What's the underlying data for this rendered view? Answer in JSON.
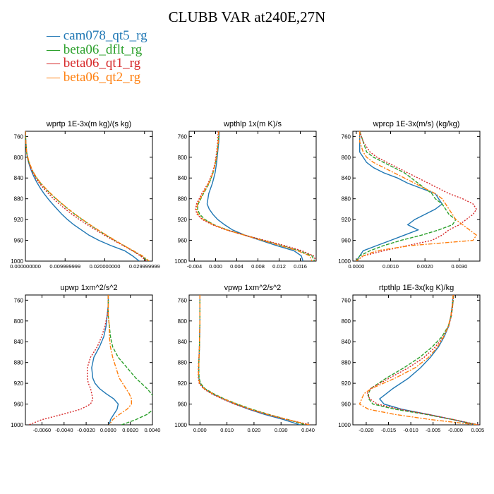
{
  "title": "CLUBB VAR at240E,27N",
  "legend": [
    {
      "name": "cam078_qt5_rg",
      "color": "#1f77b4"
    },
    {
      "name": "beta06_dflt_rg",
      "color": "#2ca02c"
    },
    {
      "name": "beta06_qt1_rg",
      "color": "#d62728"
    },
    {
      "name": "beta06_qt2_rg",
      "color": "#ff7f0e"
    }
  ],
  "chart_data": [
    {
      "type": "line",
      "title": "wprtp 1E-3x(m kg)/(s kg)",
      "ylim": [
        1000,
        750
      ],
      "yticks": [
        760,
        800,
        840,
        880,
        920,
        960,
        1000
      ],
      "xlim": [
        0,
        0.032
      ],
      "xticks": [
        0,
        0.01,
        0.02,
        0.03
      ],
      "xticklabels": [
        "0.000000000",
        "0.009999999",
        "0.020000000",
        "0.029999999"
      ],
      "y": [
        750,
        770,
        790,
        800,
        810,
        820,
        830,
        840,
        850,
        860,
        870,
        880,
        890,
        900,
        910,
        920,
        930,
        940,
        950,
        960,
        970,
        980,
        990,
        1000
      ],
      "series": [
        {
          "name": "cam078_qt5_rg",
          "values": [
            0,
            0.0001,
            0.0003,
            0.0005,
            0.0008,
            0.0012,
            0.0017,
            0.0023,
            0.003,
            0.0038,
            0.0047,
            0.0057,
            0.0068,
            0.008,
            0.0092,
            0.0106,
            0.0122,
            0.0141,
            0.016,
            0.0185,
            0.0215,
            0.025,
            0.027,
            0.0287
          ]
        },
        {
          "name": "beta06_dflt_rg",
          "values": [
            0,
            0.0001,
            0.0003,
            0.0005,
            0.0009,
            0.0014,
            0.002,
            0.0028,
            0.0038,
            0.005,
            0.0063,
            0.0077,
            0.0092,
            0.0108,
            0.0125,
            0.0143,
            0.0162,
            0.0182,
            0.0203,
            0.0225,
            0.0248,
            0.027,
            0.0292,
            0.031
          ]
        },
        {
          "name": "beta06_qt1_rg",
          "values": [
            0,
            0.0001,
            0.0003,
            0.0005,
            0.0009,
            0.0013,
            0.0019,
            0.0026,
            0.0035,
            0.0046,
            0.0058,
            0.0071,
            0.0085,
            0.0101,
            0.0118,
            0.0136,
            0.0156,
            0.0177,
            0.0199,
            0.0222,
            0.0246,
            0.027,
            0.029,
            0.0305
          ]
        },
        {
          "name": "beta06_qt2_rg",
          "values": [
            0,
            0.0001,
            0.0003,
            0.0006,
            0.001,
            0.0015,
            0.0021,
            0.0029,
            0.0039,
            0.0051,
            0.0064,
            0.0078,
            0.0093,
            0.0109,
            0.0126,
            0.0144,
            0.0163,
            0.0183,
            0.0204,
            0.0226,
            0.0248,
            0.0272,
            0.0295,
            0.0312
          ]
        }
      ]
    },
    {
      "type": "line",
      "title": "wpthlp 1x(m K)/s",
      "ylim": [
        1000,
        750
      ],
      "yticks": [
        760,
        800,
        840,
        880,
        920,
        960,
        1000
      ],
      "xlim": [
        -0.005,
        0.019
      ],
      "xticks": [
        -0.004,
        0,
        0.004,
        0.008,
        0.012,
        0.016
      ],
      "xticklabels": [
        "-0.004",
        "0.000",
        "0.004",
        "0.008",
        "0.012",
        "0.016"
      ],
      "y": [
        750,
        770,
        790,
        810,
        830,
        850,
        870,
        890,
        900,
        910,
        920,
        930,
        940,
        950,
        960,
        970,
        980,
        990,
        1000
      ],
      "series": [
        {
          "name": "cam078_qt5_rg",
          "values": [
            0.0007,
            0.0006,
            0.0004,
            0.0002,
            -0.0001,
            -0.0006,
            -0.0013,
            -0.0016,
            -0.0012,
            -0.0005,
            0.0004,
            0.0017,
            0.0032,
            0.0055,
            0.0085,
            0.0115,
            0.0148,
            0.0162,
            0.0165
          ]
        },
        {
          "name": "beta06_dflt_rg",
          "values": [
            0.0006,
            0.0005,
            0.0003,
            0.0,
            -0.0005,
            -0.0012,
            -0.0023,
            -0.0033,
            -0.0034,
            -0.003,
            -0.002,
            -0.0003,
            0.0022,
            0.0055,
            0.009,
            0.0125,
            0.0158,
            0.0182,
            0.0187
          ]
        },
        {
          "name": "beta06_qt1_rg",
          "values": [
            0.0005,
            0.0004,
            0.0002,
            -0.0001,
            -0.0006,
            -0.0014,
            -0.0026,
            -0.0036,
            -0.0038,
            -0.0035,
            -0.0025,
            -0.0006,
            0.002,
            0.0055,
            0.0093,
            0.013,
            0.0163,
            0.0185,
            0.019
          ]
        },
        {
          "name": "beta06_qt2_rg",
          "values": [
            0.0006,
            0.0005,
            0.0003,
            0.0,
            -0.0005,
            -0.0013,
            -0.0024,
            -0.0034,
            -0.0036,
            -0.0033,
            -0.0023,
            -0.0004,
            0.0021,
            0.0054,
            0.0088,
            0.0122,
            0.0155,
            0.0178,
            0.0182
          ]
        }
      ]
    },
    {
      "type": "line",
      "title": "wprcp 1E-3x(m/s) (kg/kg)",
      "ylim": [
        1000,
        750
      ],
      "yticks": [
        760,
        800,
        840,
        880,
        920,
        960,
        1000
      ],
      "xlim": [
        -0.0001,
        0.0036
      ],
      "xticks": [
        0,
        0.001,
        0.002,
        0.003
      ],
      "xticklabels": [
        "0.0000",
        "0.0010",
        "0.0020",
        "0.0030"
      ],
      "y": [
        750,
        770,
        790,
        800,
        810,
        820,
        830,
        840,
        850,
        860,
        870,
        880,
        890,
        900,
        910,
        920,
        930,
        940,
        950,
        960,
        970,
        980,
        990,
        1000
      ],
      "series": [
        {
          "name": "cam078_qt5_rg",
          "values": [
            0.0001,
            0.0001,
            0.0001,
            0.0002,
            0.0003,
            0.0005,
            0.0008,
            0.0012,
            0.0015,
            0.0019,
            0.0023,
            0.0024,
            0.0025,
            0.0023,
            0.002,
            0.0017,
            0.0015,
            0.0018,
            0.0014,
            0.001,
            0.0006,
            0.0002,
            0.0001,
            0.0
          ]
        },
        {
          "name": "beta06_dflt_rg",
          "values": [
            0.0001,
            0.0002,
            0.0003,
            0.0005,
            0.0008,
            0.0011,
            0.0014,
            0.0016,
            0.0018,
            0.002,
            0.0022,
            0.0023,
            0.0025,
            0.0026,
            0.0027,
            0.0029,
            0.0028,
            0.0024,
            0.0019,
            0.0013,
            0.0008,
            0.0004,
            0.0001,
            0.0
          ]
        },
        {
          "name": "beta06_qt1_rg",
          "values": [
            0.0001,
            0.0002,
            0.0004,
            0.0006,
            0.0009,
            0.0012,
            0.0015,
            0.0018,
            0.0021,
            0.0024,
            0.0027,
            0.0031,
            0.0034,
            0.0035,
            0.0034,
            0.0032,
            0.003,
            0.0027,
            0.0025,
            0.0022,
            0.0015,
            0.0008,
            0.0002,
            0.0
          ]
        },
        {
          "name": "beta06_qt2_rg",
          "values": [
            0.0001,
            0.0001,
            0.0002,
            0.0003,
            0.0005,
            0.0008,
            0.0011,
            0.0014,
            0.0017,
            0.002,
            0.0023,
            0.0025,
            0.0026,
            0.0027,
            0.0028,
            0.0029,
            0.0031,
            0.0033,
            0.0035,
            0.0034,
            0.0016,
            0.0006,
            0.0002,
            0.0
          ]
        }
      ]
    },
    {
      "type": "line",
      "title": "upwp 1xm^2/s^2",
      "ylim": [
        1000,
        750
      ],
      "yticks": [
        760,
        800,
        840,
        880,
        920,
        960,
        1000
      ],
      "xlim": [
        -0.0075,
        0.004
      ],
      "xticks": [
        -0.006,
        -0.004,
        -0.002,
        0,
        0.002,
        0.004
      ],
      "xticklabels": [
        "-0.0060",
        "-0.0040",
        "-0.0020",
        "0.0000",
        "0.0020",
        "0.0040"
      ],
      "y": [
        750,
        770,
        790,
        810,
        830,
        850,
        870,
        890,
        910,
        920,
        930,
        940,
        950,
        960,
        970,
        980,
        990,
        1000
      ],
      "series": [
        {
          "name": "cam078_qt5_rg",
          "values": [
            0.0,
            0.0,
            -0.0001,
            -0.0002,
            -0.0004,
            -0.0008,
            -0.0013,
            -0.0015,
            -0.0014,
            -0.0012,
            -0.0008,
            -0.0002,
            0.0005,
            0.0009,
            0.0008,
            0.0005,
            0.0002,
            0.0001
          ]
        },
        {
          "name": "beta06_dflt_rg",
          "values": [
            0.0,
            0.0,
            0.0,
            0.0001,
            0.0002,
            0.0004,
            0.0009,
            0.0017,
            0.0025,
            0.003,
            0.0035,
            0.0039,
            0.0042,
            0.0043,
            0.0041,
            0.0035,
            0.0025,
            0.0012
          ]
        },
        {
          "name": "beta06_qt1_rg",
          "values": [
            0.0,
            0.0,
            -0.0001,
            -0.0003,
            -0.0006,
            -0.001,
            -0.0016,
            -0.0019,
            -0.0019,
            -0.0018,
            -0.0016,
            -0.0015,
            -0.0014,
            -0.0016,
            -0.0025,
            -0.0042,
            -0.006,
            -0.0072
          ]
        },
        {
          "name": "beta06_qt2_rg",
          "values": [
            0.0,
            0.0,
            0.0,
            0.0001,
            0.0001,
            0.0002,
            0.0004,
            0.0007,
            0.001,
            0.0013,
            0.0016,
            0.0019,
            0.0021,
            0.0021,
            0.0017,
            0.001,
            0.0004,
            0.0001
          ]
        }
      ]
    },
    {
      "type": "line",
      "title": "vpwp 1xm^2/s^2",
      "ylim": [
        1000,
        750
      ],
      "yticks": [
        760,
        800,
        840,
        880,
        920,
        960,
        1000
      ],
      "xlim": [
        -0.004,
        0.043
      ],
      "xticks": [
        0,
        0.01,
        0.02,
        0.03,
        0.04
      ],
      "xticklabels": [
        "0.000",
        "0.010",
        "0.020",
        "0.030",
        "0.040"
      ],
      "y": [
        750,
        800,
        850,
        880,
        900,
        910,
        920,
        930,
        940,
        950,
        960,
        970,
        980,
        990,
        1000
      ],
      "series": [
        {
          "name": "cam078_qt5_rg",
          "values": [
            0.0,
            0.0,
            -0.0002,
            -0.0004,
            -0.0005,
            -0.0004,
            0.0,
            0.0015,
            0.0045,
            0.0085,
            0.013,
            0.018,
            0.024,
            0.031,
            0.037
          ]
        },
        {
          "name": "beta06_dflt_rg",
          "values": [
            0.0,
            0.0,
            -0.0002,
            -0.0004,
            -0.0004,
            -0.0003,
            0.0002,
            0.0018,
            0.005,
            0.009,
            0.0138,
            0.0192,
            0.0255,
            0.0325,
            0.039
          ]
        },
        {
          "name": "beta06_qt1_rg",
          "values": [
            0.0,
            0.0,
            -0.0002,
            -0.0005,
            -0.0006,
            -0.0006,
            -0.0003,
            0.0012,
            0.0042,
            0.0082,
            0.0128,
            0.0182,
            0.0248,
            0.0322,
            0.041
          ]
        },
        {
          "name": "beta06_qt2_rg",
          "values": [
            0.0,
            0.0,
            -0.0002,
            -0.0004,
            -0.0005,
            -0.0005,
            -0.0001,
            0.0015,
            0.0047,
            0.0088,
            0.0135,
            0.0188,
            0.0252,
            0.0325,
            0.0405
          ]
        }
      ]
    },
    {
      "type": "line",
      "title": "rtpthlp 1E-3x(kg K)/kg",
      "ylim": [
        1000,
        750
      ],
      "yticks": [
        760,
        800,
        840,
        880,
        920,
        960,
        1000
      ],
      "xlim": [
        -0.023,
        0.0055
      ],
      "xticks": [
        -0.02,
        -0.015,
        -0.01,
        -0.005,
        0,
        0.005
      ],
      "xticklabels": [
        "-0.020",
        "-0.015",
        "-0.010",
        "-0.005",
        "-0.000",
        "0.005"
      ],
      "y": [
        750,
        770,
        790,
        810,
        830,
        850,
        870,
        890,
        910,
        930,
        940,
        950,
        960,
        970,
        980,
        990,
        1000
      ],
      "series": [
        {
          "name": "cam078_qt5_rg",
          "values": [
            -0.0005,
            -0.0007,
            -0.001,
            -0.0015,
            -0.0025,
            -0.0038,
            -0.0056,
            -0.0078,
            -0.0105,
            -0.014,
            -0.0155,
            -0.017,
            -0.016,
            -0.012,
            -0.006,
            -0.0005,
            0.0045
          ]
        },
        {
          "name": "beta06_dflt_rg",
          "values": [
            -0.0004,
            -0.0006,
            -0.0009,
            -0.0016,
            -0.003,
            -0.0052,
            -0.008,
            -0.0115,
            -0.0155,
            -0.019,
            -0.0195,
            -0.0194,
            -0.0185,
            -0.0135,
            -0.0065,
            -0.0005,
            0.005
          ]
        },
        {
          "name": "beta06_qt1_rg",
          "values": [
            -0.0004,
            -0.0006,
            -0.0009,
            -0.0015,
            -0.0027,
            -0.0045,
            -0.007,
            -0.0105,
            -0.0148,
            -0.019,
            -0.0198,
            -0.0192,
            -0.0175,
            -0.0125,
            -0.006,
            -0.0004,
            0.0052
          ]
        },
        {
          "name": "beta06_qt2_rg",
          "values": [
            -0.0005,
            -0.0007,
            -0.001,
            -0.0016,
            -0.0026,
            -0.004,
            -0.006,
            -0.009,
            -0.0135,
            -0.0188,
            -0.0205,
            -0.021,
            -0.0215,
            -0.0195,
            -0.0135,
            -0.0055,
            0.0048
          ]
        }
      ]
    }
  ]
}
